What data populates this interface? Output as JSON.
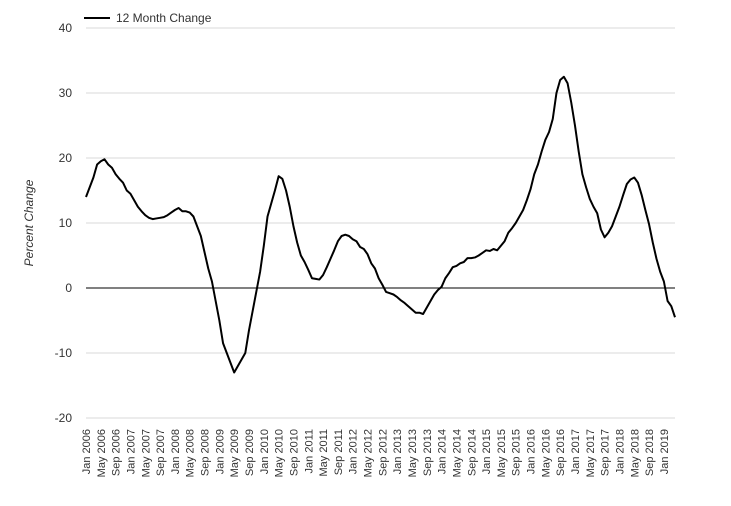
{
  "chart_data": {
    "type": "line",
    "ylabel": "Percent Change",
    "ylim": [
      -20,
      40
    ],
    "yticks": [
      40,
      30,
      20,
      10,
      0,
      -10,
      -20
    ],
    "grid": true,
    "legend_position": "top-left",
    "colors": {
      "series": "#000000",
      "grid": "#d9d9d9",
      "zero_line": "#000000",
      "text": "#333333"
    },
    "x_tick_labels": [
      "Jan 2006",
      "May 2006",
      "Sep 2006",
      "Jan 2007",
      "May 2007",
      "Sep 2007",
      "Jan 2008",
      "May 2008",
      "Sep 2008",
      "Jan 2009",
      "May 2009",
      "Sep 2009",
      "Jan 2010",
      "May 2010",
      "Sep 2010",
      "Jan 2011",
      "May 2011",
      "Sep 2011",
      "Jan 2012",
      "May 2012",
      "Sep 2012",
      "Jan 2013",
      "May 2013",
      "Sep 2013",
      "Jan 2014",
      "May 2014",
      "Sep 2014",
      "Jan 2015",
      "May 2015",
      "Sep 2015",
      "Jan 2016",
      "May 2016",
      "Sep 2016",
      "Jan 2017",
      "May 2017",
      "Sep 2017",
      "Jan 2018",
      "May 2018",
      "Sep 2018",
      "Jan 2019"
    ],
    "series": [
      {
        "name": "12 Month Change",
        "x_start": "Jan 2006",
        "values": [
          14.0,
          15.5,
          17.0,
          19.0,
          19.5,
          19.8,
          19.0,
          18.5,
          17.5,
          16.8,
          16.2,
          15.0,
          14.5,
          13.5,
          12.5,
          11.8,
          11.2,
          10.8,
          10.6,
          10.7,
          10.8,
          10.9,
          11.2,
          11.6,
          12.0,
          12.3,
          11.8,
          11.8,
          11.6,
          11.0,
          9.5,
          8.0,
          5.5,
          3.0,
          1.0,
          -2.0,
          -5.0,
          -8.5,
          -10.0,
          -11.5,
          -13.0,
          -12.0,
          -11.0,
          -10.0,
          -6.5,
          -3.5,
          -0.5,
          2.5,
          6.5,
          11.0,
          13.0,
          15.0,
          17.2,
          16.8,
          15.0,
          12.5,
          9.5,
          7.0,
          5.0,
          4.0,
          2.8,
          1.5,
          1.4,
          1.3,
          2.0,
          3.2,
          4.5,
          5.8,
          7.2,
          8.0,
          8.2,
          8.0,
          7.5,
          7.2,
          6.3,
          6.0,
          5.2,
          3.8,
          3.0,
          1.5,
          0.5,
          -0.6,
          -0.8,
          -1.0,
          -1.4,
          -1.9,
          -2.3,
          -2.8,
          -3.3,
          -3.8,
          -3.8,
          -4.0,
          -3.0,
          -2.0,
          -1.0,
          -0.3,
          0.2,
          1.5,
          2.3,
          3.2,
          3.4,
          3.8,
          4.0,
          4.6,
          4.6,
          4.7,
          5.0,
          5.4,
          5.8,
          5.7,
          6.0,
          5.8,
          6.5,
          7.2,
          8.5,
          9.2,
          10.0,
          11.0,
          12.0,
          13.5,
          15.2,
          17.5,
          19.0,
          21.0,
          22.8,
          24.0,
          26.0,
          30.0,
          32.0,
          32.5,
          31.5,
          28.5,
          25.0,
          21.0,
          17.5,
          15.5,
          13.7,
          12.5,
          11.5,
          9.0,
          7.8,
          8.5,
          9.5,
          11.0,
          12.5,
          14.3,
          16.0,
          16.7,
          17.0,
          16.2,
          14.3,
          12.0,
          9.8,
          7.0,
          4.5,
          2.5,
          1.0,
          -2.0,
          -2.8,
          -4.5
        ]
      }
    ]
  }
}
